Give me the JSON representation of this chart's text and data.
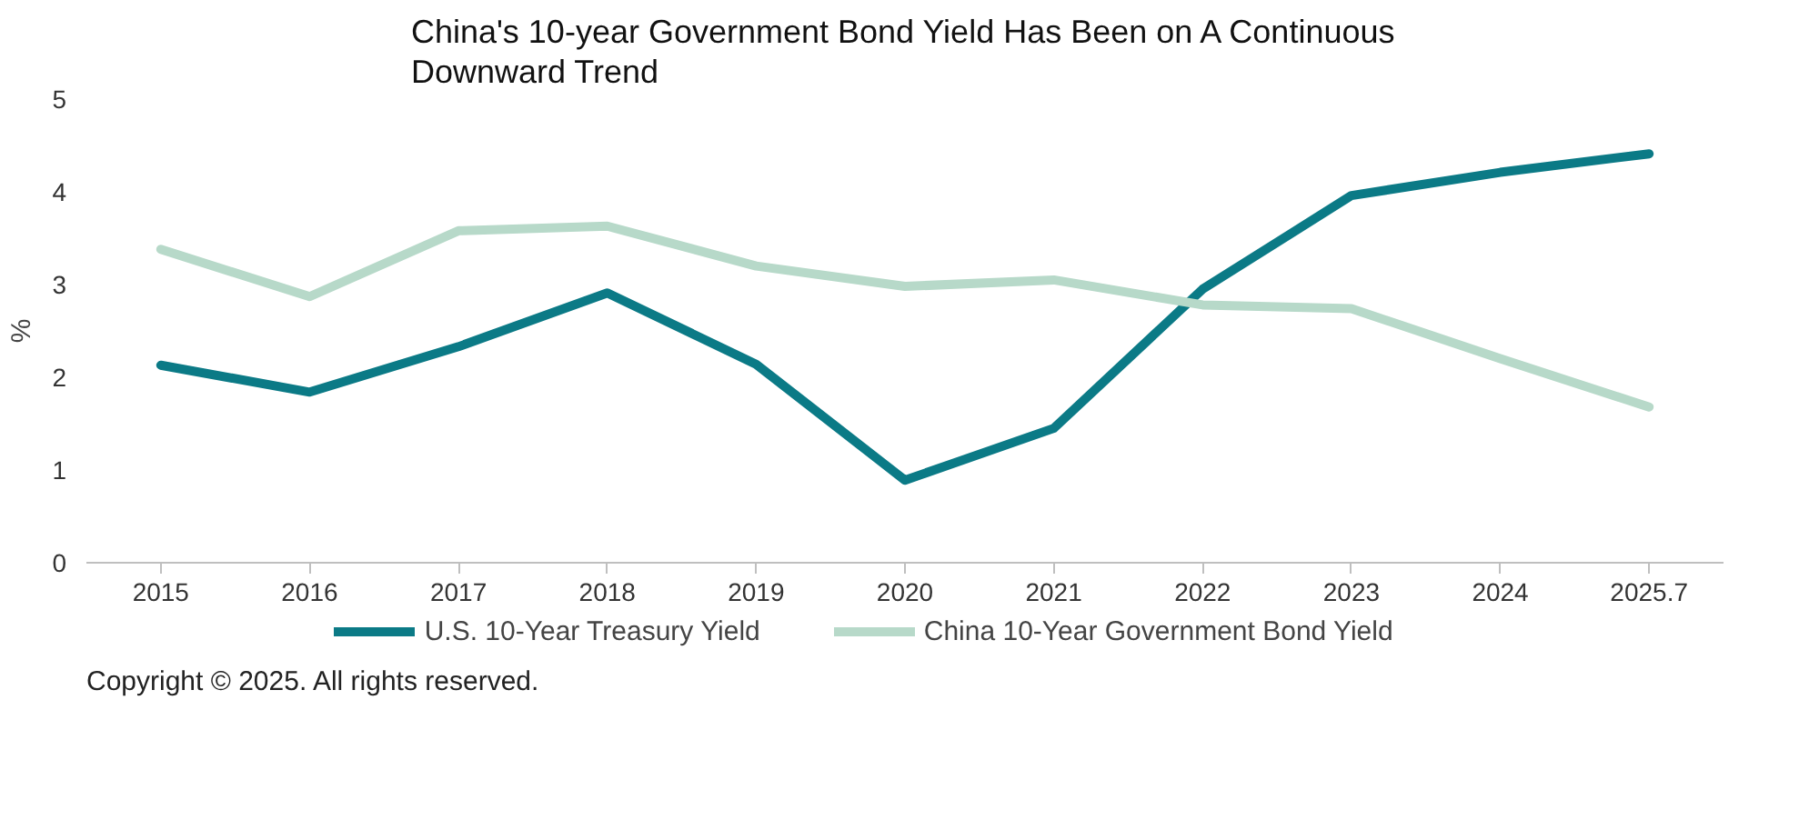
{
  "chart_data": {
    "type": "line",
    "title": "China's 10-year Government Bond Yield Has Been on A Continuous\nDownward Trend",
    "ylabel": "%",
    "categories": [
      "2015",
      "2016",
      "2017",
      "2018",
      "2019",
      "2020",
      "2021",
      "2022",
      "2023",
      "2024",
      "2025.7"
    ],
    "series": [
      {
        "name": "U.S. 10-Year Treasury Yield",
        "color": "#0b7a86",
        "values": [
          2.13,
          1.84,
          2.33,
          2.91,
          2.14,
          0.89,
          1.45,
          2.95,
          3.96,
          4.21,
          4.41
        ]
      },
      {
        "name": "China 10-Year Government Bond Yield",
        "color": "#b7d9c9",
        "values": [
          3.38,
          2.87,
          3.58,
          3.63,
          3.2,
          2.98,
          3.05,
          2.78,
          2.74,
          2.2,
          1.68
        ]
      }
    ],
    "ylim": [
      0,
      5
    ],
    "yticks": [
      0,
      1,
      2,
      3,
      4,
      5
    ],
    "grid": false,
    "legend": "bottom",
    "marker": "none",
    "line_style": "solid",
    "annotations": [
      "Copyright © 2025. All rights reserved."
    ]
  }
}
